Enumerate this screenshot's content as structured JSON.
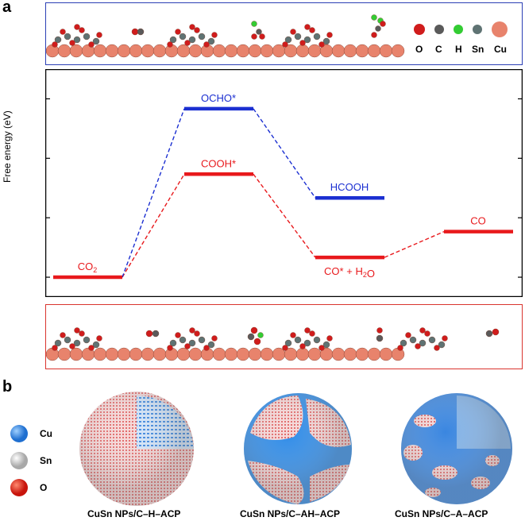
{
  "panel_a": "a",
  "panel_b": "b",
  "legend_top": {
    "elements": [
      "O",
      "C",
      "H",
      "Sn",
      "Cu"
    ],
    "colors": {
      "O": "#d01c1c",
      "C": "#5a5a5a",
      "H": "#33cc33",
      "Sn": "#5f7373",
      "Cu": "#e8836c"
    }
  },
  "chart_data": {
    "type": "line",
    "ylabel": "Free energy (eV)",
    "xlabel": "",
    "ylim": [
      -0.1,
      1.05
    ],
    "yticks": [
      "0.0",
      "0.3",
      "0.6",
      "0.9"
    ],
    "series": [
      {
        "pathway": "formate",
        "color": "#1b2fd1",
        "steps": [
          {
            "label": "CO2",
            "value": 0.0,
            "shared": true
          },
          {
            "label": "OCHO*",
            "value": 0.85
          },
          {
            "label": "HCOOH",
            "value": 0.4
          }
        ]
      },
      {
        "pathway": "CO",
        "color": "#e8191c",
        "steps": [
          {
            "label": "CO2",
            "value": 0.0
          },
          {
            "label": "COOH*",
            "value": 0.52
          },
          {
            "label": "CO* + H2O",
            "value": 0.1
          },
          {
            "label": "CO",
            "value": 0.23
          }
        ]
      }
    ]
  },
  "panel_b_legend": [
    {
      "label": "Cu",
      "color": "#2e8be8"
    },
    {
      "label": "Sn",
      "color": "#d9d9d9"
    },
    {
      "label": "O",
      "color": "#e0241a"
    }
  ],
  "captions": [
    "CuSn NPs/C–H–ACP",
    "CuSn NPs/C–AH–ACP",
    "CuSn NPs/C–A–ACP"
  ]
}
